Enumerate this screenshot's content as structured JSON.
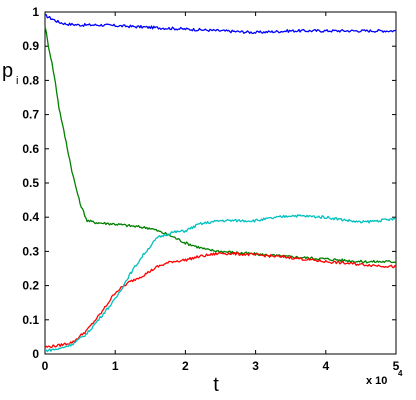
{
  "chart_data": {
    "type": "line",
    "title": "",
    "xlabel": "t",
    "ylabel": {
      "main": "p",
      "subscript": "i"
    },
    "x_multiplier_label": {
      "base": "x 10",
      "exponent": "4"
    },
    "xlim": [
      0,
      5
    ],
    "ylim": [
      0,
      1
    ],
    "x_ticks": [
      "0",
      "1",
      "2",
      "3",
      "4",
      "5"
    ],
    "y_ticks": [
      "0",
      "0.1",
      "0.2",
      "0.3",
      "0.4",
      "0.5",
      "0.6",
      "0.7",
      "0.8",
      "0.9",
      "1"
    ],
    "grid": false,
    "legend": "none",
    "series": [
      {
        "color": "#0000ff",
        "x": [
          0,
          0.1,
          0.2,
          0.3,
          0.5,
          0.8,
          1.0,
          1.5,
          2.0,
          2.5,
          3.0,
          3.5,
          4.0,
          4.5,
          5.0
        ],
        "y": [
          0.99,
          0.98,
          0.97,
          0.965,
          0.962,
          0.962,
          0.96,
          0.955,
          0.95,
          0.945,
          0.94,
          0.945,
          0.945,
          0.945,
          0.945
        ]
      },
      {
        "color": "#008000",
        "x": [
          0,
          0.05,
          0.1,
          0.15,
          0.2,
          0.3,
          0.4,
          0.5,
          0.6,
          0.7,
          0.8,
          1.0,
          1.2,
          1.5,
          1.8,
          2.0,
          2.3,
          2.5,
          3.0,
          3.5,
          4.0,
          4.5,
          5.0
        ],
        "y": [
          0.96,
          0.9,
          0.85,
          0.79,
          0.72,
          0.62,
          0.52,
          0.44,
          0.39,
          0.385,
          0.383,
          0.38,
          0.375,
          0.368,
          0.345,
          0.325,
          0.305,
          0.3,
          0.292,
          0.284,
          0.278,
          0.27,
          0.27
        ]
      },
      {
        "color": "#ff0000",
        "x": [
          0,
          0.2,
          0.4,
          0.6,
          0.8,
          1.0,
          1.2,
          1.4,
          1.6,
          1.8,
          2.0,
          2.2,
          2.5,
          3.0,
          3.5,
          4.0,
          4.5,
          5.0
        ],
        "y": [
          0.02,
          0.025,
          0.035,
          0.07,
          0.12,
          0.18,
          0.21,
          0.23,
          0.255,
          0.27,
          0.275,
          0.285,
          0.295,
          0.29,
          0.282,
          0.27,
          0.262,
          0.255
        ]
      },
      {
        "color": "#00c0c0",
        "x": [
          0,
          0.2,
          0.4,
          0.6,
          0.8,
          1.0,
          1.2,
          1.4,
          1.6,
          1.8,
          2.0,
          2.2,
          2.5,
          3.0,
          3.5,
          4.0,
          4.5,
          5.0
        ],
        "y": [
          0.01,
          0.015,
          0.03,
          0.06,
          0.11,
          0.16,
          0.23,
          0.29,
          0.34,
          0.355,
          0.36,
          0.38,
          0.39,
          0.39,
          0.405,
          0.4,
          0.385,
          0.395
        ]
      }
    ]
  }
}
